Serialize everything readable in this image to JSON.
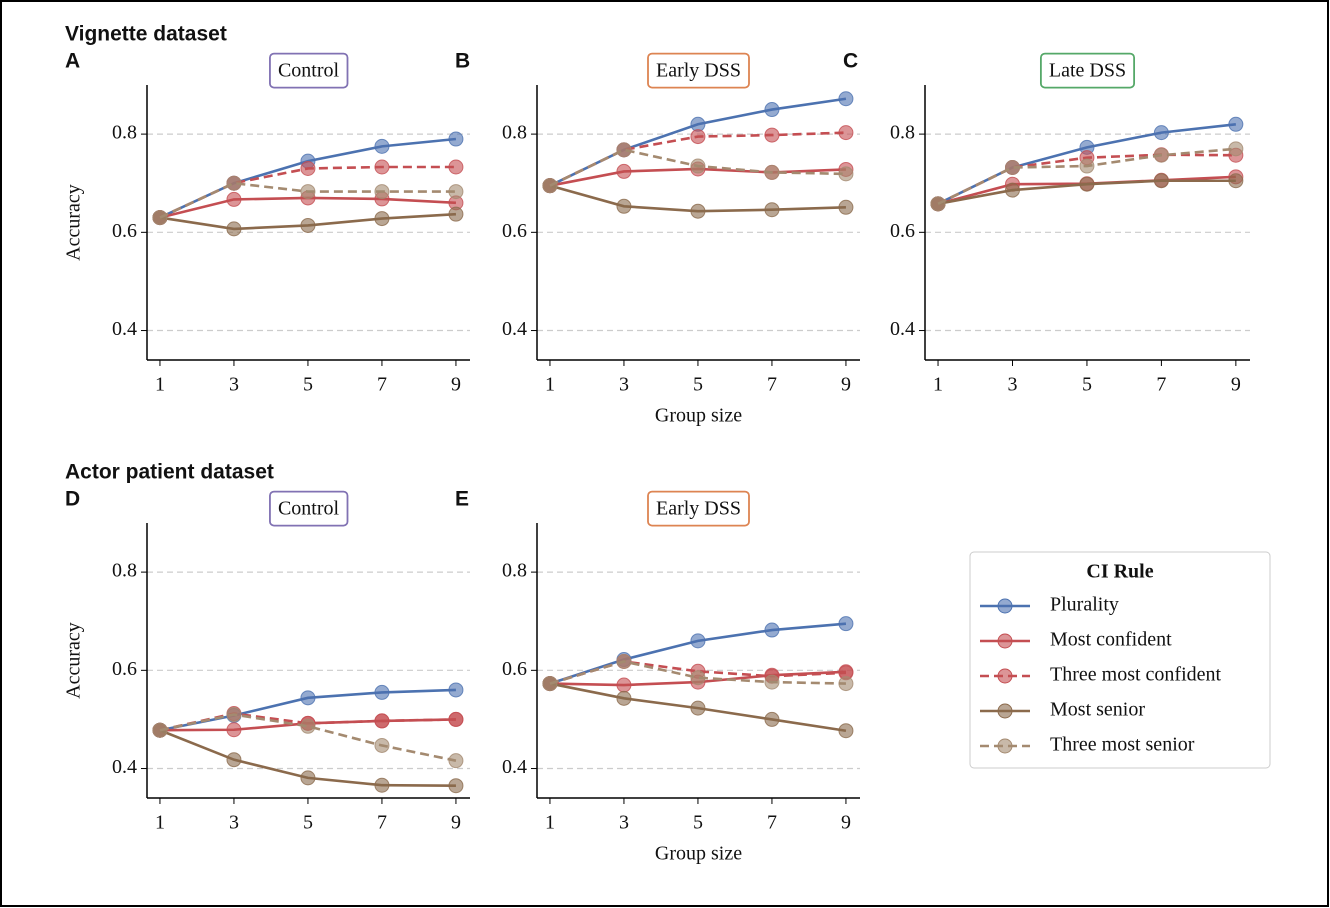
{
  "sections": [
    {
      "title": "Vignette dataset"
    },
    {
      "title": "Actor patient dataset"
    }
  ],
  "legend": {
    "title": "CI Rule"
  },
  "chart_data": [
    {
      "type": "line",
      "label": "A",
      "title": "Control",
      "title_color": "#8172b3",
      "ylabel": "Accuracy",
      "x": [
        1,
        3,
        5,
        7,
        9
      ],
      "xlim": [
        0.65,
        9.38
      ],
      "xticks": [
        1,
        3,
        5,
        7,
        9
      ],
      "ylim": [
        0.34,
        0.9
      ],
      "yticks": [
        0.4,
        0.6,
        0.8
      ],
      "grid": true,
      "series": [
        {
          "name": "Plurality",
          "color": "#4c72b0",
          "dash": false,
          "values": [
            0.63,
            0.7,
            0.745,
            0.775,
            0.79
          ]
        },
        {
          "name": "Most confident",
          "color": "#c44e52",
          "dash": false,
          "values": [
            0.63,
            0.667,
            0.67,
            0.668,
            0.66
          ]
        },
        {
          "name": "Three most confident",
          "color": "#c44e52",
          "dash": true,
          "values": [
            0.63,
            0.7,
            0.73,
            0.733,
            0.733
          ]
        },
        {
          "name": "Most senior",
          "color": "#8b6a4c",
          "dash": false,
          "values": [
            0.63,
            0.607,
            0.614,
            0.628,
            0.637
          ]
        },
        {
          "name": "Three most senior",
          "color": "#a48a70",
          "dash": true,
          "values": [
            0.63,
            0.7,
            0.683,
            0.683,
            0.683
          ]
        }
      ]
    },
    {
      "type": "line",
      "label": "B",
      "title": "Early DSS",
      "title_color": "#dd8452",
      "xlabel": "Group size",
      "x": [
        1,
        3,
        5,
        7,
        9
      ],
      "xlim": [
        0.65,
        9.38
      ],
      "xticks": [
        1,
        3,
        5,
        7,
        9
      ],
      "ylim": [
        0.34,
        0.9
      ],
      "yticks": [
        0.4,
        0.6,
        0.8
      ],
      "grid": true,
      "series": [
        {
          "name": "Plurality",
          "color": "#4c72b0",
          "dash": false,
          "values": [
            0.695,
            0.768,
            0.82,
            0.85,
            0.872
          ]
        },
        {
          "name": "Most confident",
          "color": "#c44e52",
          "dash": false,
          "values": [
            0.695,
            0.724,
            0.729,
            0.722,
            0.728
          ]
        },
        {
          "name": "Three most confident",
          "color": "#c44e52",
          "dash": true,
          "values": [
            0.695,
            0.768,
            0.795,
            0.798,
            0.803
          ]
        },
        {
          "name": "Most senior",
          "color": "#8b6a4c",
          "dash": false,
          "values": [
            0.695,
            0.653,
            0.643,
            0.646,
            0.651
          ]
        },
        {
          "name": "Three most senior",
          "color": "#a48a70",
          "dash": true,
          "values": [
            0.695,
            0.768,
            0.735,
            0.722,
            0.719
          ]
        }
      ]
    },
    {
      "type": "line",
      "label": "C",
      "title": "Late DSS",
      "title_color": "#55a868",
      "x": [
        1,
        3,
        5,
        7,
        9
      ],
      "xlim": [
        0.65,
        9.38
      ],
      "xticks": [
        1,
        3,
        5,
        7,
        9
      ],
      "ylim": [
        0.34,
        0.9
      ],
      "yticks": [
        0.4,
        0.6,
        0.8
      ],
      "grid": true,
      "series": [
        {
          "name": "Plurality",
          "color": "#4c72b0",
          "dash": false,
          "values": [
            0.658,
            0.732,
            0.773,
            0.803,
            0.82
          ]
        },
        {
          "name": "Most confident",
          "color": "#c44e52",
          "dash": false,
          "values": [
            0.658,
            0.698,
            0.699,
            0.706,
            0.713
          ]
        },
        {
          "name": "Three most confident",
          "color": "#c44e52",
          "dash": true,
          "values": [
            0.658,
            0.732,
            0.752,
            0.758,
            0.757
          ]
        },
        {
          "name": "Most senior",
          "color": "#8b6a4c",
          "dash": false,
          "values": [
            0.658,
            0.686,
            0.698,
            0.705,
            0.705
          ]
        },
        {
          "name": "Three most senior",
          "color": "#a48a70",
          "dash": true,
          "values": [
            0.658,
            0.732,
            0.735,
            0.757,
            0.77
          ]
        }
      ]
    },
    {
      "type": "line",
      "label": "D",
      "title": "Control",
      "title_color": "#8172b3",
      "ylabel": "Accuracy",
      "x": [
        1,
        3,
        5,
        7,
        9
      ],
      "xlim": [
        0.65,
        9.38
      ],
      "xticks": [
        1,
        3,
        5,
        7,
        9
      ],
      "ylim": [
        0.34,
        0.9
      ],
      "yticks": [
        0.4,
        0.6,
        0.8
      ],
      "grid": true,
      "series": [
        {
          "name": "Plurality",
          "color": "#4c72b0",
          "dash": false,
          "values": [
            0.478,
            0.508,
            0.544,
            0.555,
            0.56
          ]
        },
        {
          "name": "Most confident",
          "color": "#c44e52",
          "dash": false,
          "values": [
            0.478,
            0.479,
            0.492,
            0.497,
            0.5
          ]
        },
        {
          "name": "Three most confident",
          "color": "#c44e52",
          "dash": true,
          "values": [
            0.478,
            0.512,
            0.492,
            0.497,
            0.5
          ]
        },
        {
          "name": "Most senior",
          "color": "#8b6a4c",
          "dash": false,
          "values": [
            0.478,
            0.418,
            0.381,
            0.366,
            0.365
          ]
        },
        {
          "name": "Three most senior",
          "color": "#a48a70",
          "dash": true,
          "values": [
            0.478,
            0.51,
            0.486,
            0.447,
            0.416
          ]
        }
      ]
    },
    {
      "type": "line",
      "label": "E",
      "title": "Early DSS",
      "title_color": "#dd8452",
      "xlabel": "Group size",
      "x": [
        1,
        3,
        5,
        7,
        9
      ],
      "xlim": [
        0.65,
        9.38
      ],
      "xticks": [
        1,
        3,
        5,
        7,
        9
      ],
      "ylim": [
        0.34,
        0.9
      ],
      "yticks": [
        0.4,
        0.6,
        0.8
      ],
      "grid": true,
      "series": [
        {
          "name": "Plurality",
          "color": "#4c72b0",
          "dash": false,
          "values": [
            0.573,
            0.622,
            0.66,
            0.682,
            0.695
          ]
        },
        {
          "name": "Most confident",
          "color": "#c44e52",
          "dash": false,
          "values": [
            0.573,
            0.57,
            0.576,
            0.59,
            0.597
          ]
        },
        {
          "name": "Three most confident",
          "color": "#c44e52",
          "dash": true,
          "values": [
            0.573,
            0.618,
            0.598,
            0.588,
            0.595
          ]
        },
        {
          "name": "Most senior",
          "color": "#8b6a4c",
          "dash": false,
          "values": [
            0.573,
            0.543,
            0.523,
            0.5,
            0.477
          ]
        },
        {
          "name": "Three most senior",
          "color": "#a48a70",
          "dash": true,
          "values": [
            0.573,
            0.618,
            0.585,
            0.576,
            0.573
          ]
        }
      ]
    }
  ]
}
